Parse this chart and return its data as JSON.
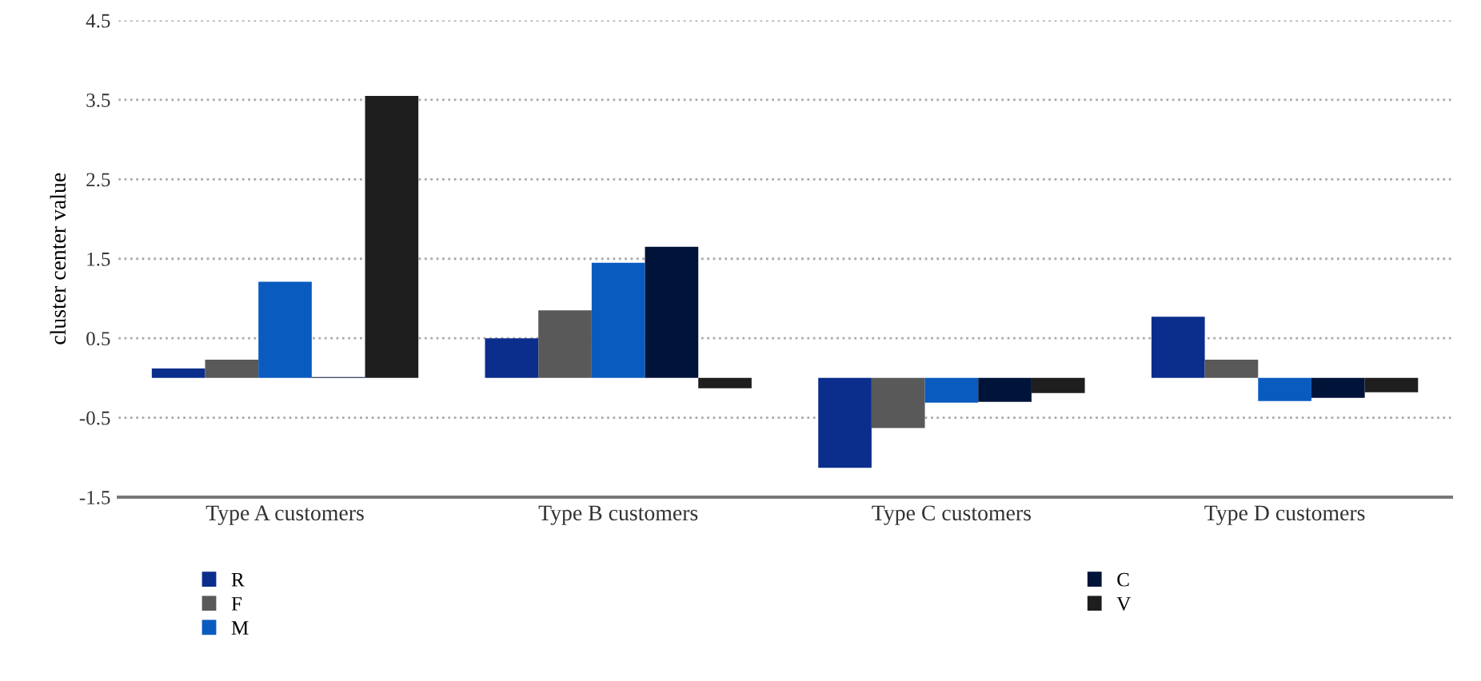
{
  "chart_data": {
    "type": "bar",
    "ylabel": "cluster center value",
    "categories": [
      "Type A customers",
      "Type B customers",
      "Type C customers",
      "Type D customers"
    ],
    "series": [
      {
        "name": "R",
        "color": "#0b2d8c",
        "values": [
          0.12,
          0.5,
          -1.13,
          0.77
        ]
      },
      {
        "name": "F",
        "color": "#595959",
        "values": [
          0.23,
          0.85,
          -0.63,
          0.23
        ]
      },
      {
        "name": "M",
        "color": "#0a5bbf",
        "values": [
          1.21,
          1.45,
          -0.31,
          -0.29
        ]
      },
      {
        "name": "C",
        "color": "#001338",
        "values": [
          0.01,
          1.65,
          -0.3,
          -0.25
        ]
      },
      {
        "name": "V",
        "color": "#1e1e1e",
        "values": [
          3.55,
          -0.13,
          -0.19,
          -0.18
        ]
      }
    ],
    "ylim": [
      -1.5,
      4.5
    ],
    "yticks": [
      -1.5,
      -0.5,
      0.5,
      1.5,
      2.5,
      3.5,
      4.5
    ],
    "grid": "y",
    "legend": "bottom"
  }
}
